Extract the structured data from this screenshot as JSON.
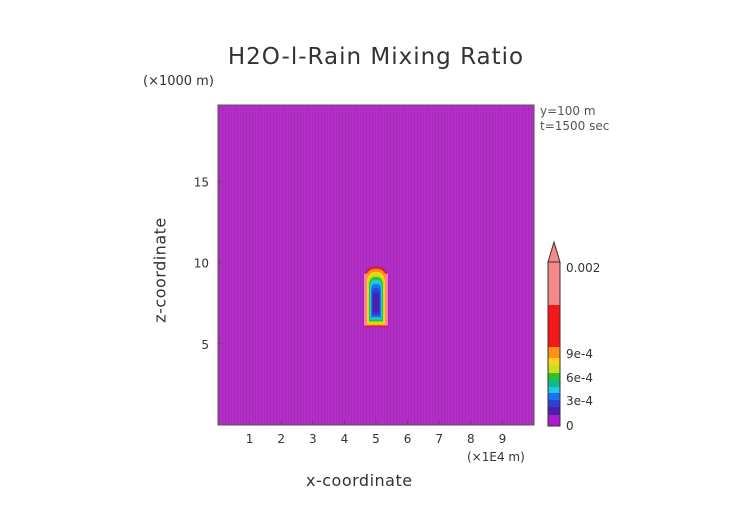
{
  "chart_data": {
    "type": "heatmap",
    "title": "H2O-l-Rain Mixing Ratio",
    "xlabel": "x-coordinate",
    "ylabel": "z-coordinate",
    "x_unit": "(×1E4 m)",
    "y_unit": "(×1000 m)",
    "annotations": [
      "y=100 m",
      "t=1500 sec"
    ],
    "xlim": [
      0,
      10
    ],
    "ylim": [
      0,
      19.7
    ],
    "x_ticks": [
      1,
      2,
      3,
      4,
      5,
      6,
      7,
      8,
      9
    ],
    "y_ticks": [
      5,
      10,
      15
    ],
    "background_value": 0,
    "feature": {
      "x_center": 5.0,
      "z_bottom": 6.0,
      "z_top": 9.8,
      "max_value": "0.002",
      "shape": "narrow vertical plume"
    },
    "colorbar": {
      "labels": [
        "0.002",
        "9e-4",
        "6e-4",
        "3e-4",
        "0"
      ],
      "label_values": [
        0.002,
        0.0009,
        0.0006,
        0.0003,
        0
      ],
      "levels": [
        0,
        0.0001,
        0.0002,
        0.0003,
        0.0004,
        0.0005,
        0.0006,
        0.0007,
        0.0008,
        0.0009,
        0.001,
        0.002
      ],
      "colors": [
        "#b019ce",
        "#4a1fae",
        "#2e3fd6",
        "#1e73f0",
        "#1ec8e8",
        "#14b88a",
        "#2ec32e",
        "#c8e01e",
        "#ffd01e",
        "#ff9214",
        "#f51818",
        "#f58a8a"
      ],
      "extend_top": true
    },
    "background_color": "#b32ec7"
  }
}
